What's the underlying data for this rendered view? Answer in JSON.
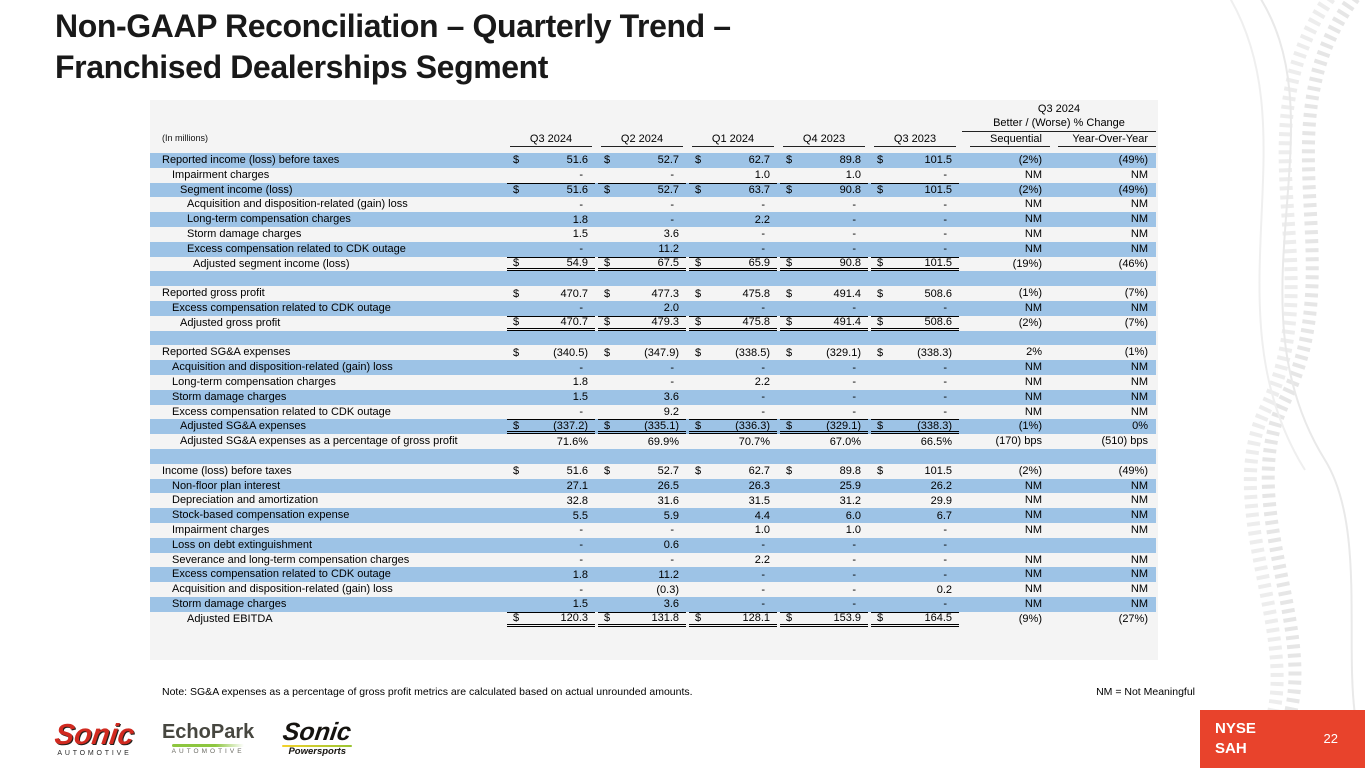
{
  "slide": {
    "title_line1": "Non-GAAP Reconciliation – Quarterly Trend –",
    "title_line2": "Franchised Dealerships Segment",
    "note": "Note: SG&A expenses as a percentage of gross profit metrics are calculated based on actual unrounded amounts.",
    "nm_note": "NM = Not Meaningful",
    "page_number": "22",
    "ticker_line1": "NYSE",
    "ticker_line2": "SAH",
    "logos": [
      {
        "name": "Sonic Automotive",
        "main": "Sonic",
        "sub": "AUTOMOTIVE"
      },
      {
        "name": "EchoPark Automotive",
        "main": "EchoPark",
        "sub": "AUTOMOTIVE"
      },
      {
        "name": "Sonic Powersports",
        "main": "Sonic",
        "sub": "Powersports"
      }
    ],
    "colors": {
      "row_highlight": "#9DC3E6",
      "brand_red": "#E8432C",
      "echopark_green": "#8DC63F"
    }
  },
  "table": {
    "units_label": "(In millions)",
    "period_headers": [
      "Q3 2024",
      "Q2 2024",
      "Q1 2024",
      "Q4 2023",
      "Q3 2023"
    ],
    "change_header_top": "Q3 2024",
    "change_header_bottom": "Better / (Worse) % Change",
    "change_columns": [
      "Sequential",
      "Year-Over-Year"
    ],
    "rows": [
      {
        "label": "Reported income (loss) before taxes",
        "indent": 0,
        "dollar": true,
        "values": [
          "51.6",
          "52.7",
          "62.7",
          "89.8",
          "101.5"
        ],
        "seq": "(2%)",
        "yoy": "(49%)"
      },
      {
        "label": "Impairment charges",
        "indent": 1,
        "dollar": false,
        "values": [
          "-",
          "-",
          "1.0",
          "1.0",
          "-"
        ],
        "seq": "NM",
        "yoy": "NM"
      },
      {
        "label": "Segment income (loss)",
        "indent": 2,
        "dollar": true,
        "values": [
          "51.6",
          "52.7",
          "63.7",
          "90.8",
          "101.5"
        ],
        "seq": "(2%)",
        "yoy": "(49%)",
        "rule_top": true
      },
      {
        "label": "Acquisition and disposition-related (gain) loss",
        "indent": 3,
        "dollar": false,
        "values": [
          "-",
          "-",
          "-",
          "-",
          "-"
        ],
        "seq": "NM",
        "yoy": "NM"
      },
      {
        "label": "Long-term compensation charges",
        "indent": 3,
        "dollar": false,
        "values": [
          "1.8",
          "-",
          "2.2",
          "-",
          "-"
        ],
        "seq": "NM",
        "yoy": "NM"
      },
      {
        "label": "Storm damage charges",
        "indent": 3,
        "dollar": false,
        "values": [
          "1.5",
          "3.6",
          "-",
          "-",
          "-"
        ],
        "seq": "NM",
        "yoy": "NM"
      },
      {
        "label": "Excess compensation related to CDK outage",
        "indent": 3,
        "dollar": false,
        "values": [
          "-",
          "11.2",
          "-",
          "-",
          "-"
        ],
        "seq": "NM",
        "yoy": "NM"
      },
      {
        "label": "Adjusted segment income (loss)",
        "indent": 4,
        "dollar": true,
        "values": [
          "54.9",
          "67.5",
          "65.9",
          "90.8",
          "101.5"
        ],
        "seq": "(19%)",
        "yoy": "(46%)",
        "rule_top": true,
        "rule_double": true
      },
      {
        "blank": true
      },
      {
        "label": "Reported gross profit",
        "indent": 0,
        "dollar": true,
        "values": [
          "470.7",
          "477.3",
          "475.8",
          "491.4",
          "508.6"
        ],
        "seq": "(1%)",
        "yoy": "(7%)"
      },
      {
        "label": "Excess compensation related to CDK outage",
        "indent": 1,
        "dollar": false,
        "values": [
          "-",
          "2.0",
          "-",
          "-",
          "-"
        ],
        "seq": "NM",
        "yoy": "NM"
      },
      {
        "label": "Adjusted gross profit",
        "indent": 2,
        "dollar": true,
        "values": [
          "470.7",
          "479.3",
          "475.8",
          "491.4",
          "508.6"
        ],
        "seq": "(2%)",
        "yoy": "(7%)",
        "rule_top": true,
        "rule_double": true
      },
      {
        "blank": true
      },
      {
        "label": "Reported SG&A expenses",
        "indent": 0,
        "dollar": true,
        "values": [
          "(340.5)",
          "(347.9)",
          "(338.5)",
          "(329.1)",
          "(338.3)"
        ],
        "seq": "2%",
        "yoy": "(1%)"
      },
      {
        "label": "Acquisition and disposition-related (gain) loss",
        "indent": 1,
        "dollar": false,
        "values": [
          "-",
          "-",
          "-",
          "-",
          "-"
        ],
        "seq": "NM",
        "yoy": "NM"
      },
      {
        "label": "Long-term compensation charges",
        "indent": 1,
        "dollar": false,
        "values": [
          "1.8",
          "-",
          "2.2",
          "-",
          "-"
        ],
        "seq": "NM",
        "yoy": "NM"
      },
      {
        "label": "Storm damage charges",
        "indent": 1,
        "dollar": false,
        "values": [
          "1.5",
          "3.6",
          "-",
          "-",
          "-"
        ],
        "seq": "NM",
        "yoy": "NM"
      },
      {
        "label": "Excess compensation related to CDK outage",
        "indent": 1,
        "dollar": false,
        "values": [
          "-",
          "9.2",
          "-",
          "-",
          "-"
        ],
        "seq": "NM",
        "yoy": "NM"
      },
      {
        "label": "Adjusted SG&A expenses",
        "indent": 2,
        "dollar": true,
        "values": [
          "(337.2)",
          "(335.1)",
          "(336.3)",
          "(329.1)",
          "(338.3)"
        ],
        "seq": "(1%)",
        "yoy": "0%",
        "rule_top": true,
        "rule_double": true
      },
      {
        "label": "Adjusted SG&A expenses as a percentage of gross profit",
        "indent": 2,
        "dollar": false,
        "values": [
          "71.6%",
          "69.9%",
          "70.7%",
          "67.0%",
          "66.5%"
        ],
        "seq": "(170) bps",
        "yoy": "(510) bps"
      },
      {
        "blank": true
      },
      {
        "label": "Income (loss) before taxes",
        "indent": 0,
        "dollar": true,
        "values": [
          "51.6",
          "52.7",
          "62.7",
          "89.8",
          "101.5"
        ],
        "seq": "(2%)",
        "yoy": "(49%)"
      },
      {
        "label": "Non-floor plan interest",
        "indent": 1,
        "dollar": false,
        "values": [
          "27.1",
          "26.5",
          "26.3",
          "25.9",
          "26.2"
        ],
        "seq": "NM",
        "yoy": "NM"
      },
      {
        "label": "Depreciation and amortization",
        "indent": 1,
        "dollar": false,
        "values": [
          "32.8",
          "31.6",
          "31.5",
          "31.2",
          "29.9"
        ],
        "seq": "NM",
        "yoy": "NM"
      },
      {
        "label": "Stock-based compensation expense",
        "indent": 1,
        "dollar": false,
        "values": [
          "5.5",
          "5.9",
          "4.4",
          "6.0",
          "6.7"
        ],
        "seq": "NM",
        "yoy": "NM"
      },
      {
        "label": "Impairment charges",
        "indent": 1,
        "dollar": false,
        "values": [
          "-",
          "-",
          "1.0",
          "1.0",
          "-"
        ],
        "seq": "NM",
        "yoy": "NM"
      },
      {
        "label": "Loss on debt extinguishment",
        "indent": 1,
        "dollar": false,
        "values": [
          "-",
          "0.6",
          "-",
          "-",
          "-"
        ],
        "seq": "",
        "yoy": ""
      },
      {
        "label": "Severance and long-term compensation charges",
        "indent": 1,
        "dollar": false,
        "values": [
          "-",
          "-",
          "2.2",
          "-",
          "-"
        ],
        "seq": "NM",
        "yoy": "NM"
      },
      {
        "label": "Excess compensation related to CDK outage",
        "indent": 1,
        "dollar": false,
        "values": [
          "1.8",
          "11.2",
          "-",
          "-",
          "-"
        ],
        "seq": "NM",
        "yoy": "NM"
      },
      {
        "label": "Acquisition and disposition-related (gain) loss",
        "indent": 1,
        "dollar": false,
        "values": [
          "-",
          "(0.3)",
          "-",
          "-",
          "0.2"
        ],
        "seq": "NM",
        "yoy": "NM"
      },
      {
        "label": "Storm damage charges",
        "indent": 1,
        "dollar": false,
        "values": [
          "1.5",
          "3.6",
          "-",
          "-",
          "-"
        ],
        "seq": "NM",
        "yoy": "NM"
      },
      {
        "label": "Adjusted EBITDA",
        "indent": 3,
        "dollar": true,
        "values": [
          "120.3",
          "131.8",
          "128.1",
          "153.9",
          "164.5"
        ],
        "seq": "(9%)",
        "yoy": "(27%)",
        "rule_top": true,
        "rule_double": true
      }
    ]
  }
}
